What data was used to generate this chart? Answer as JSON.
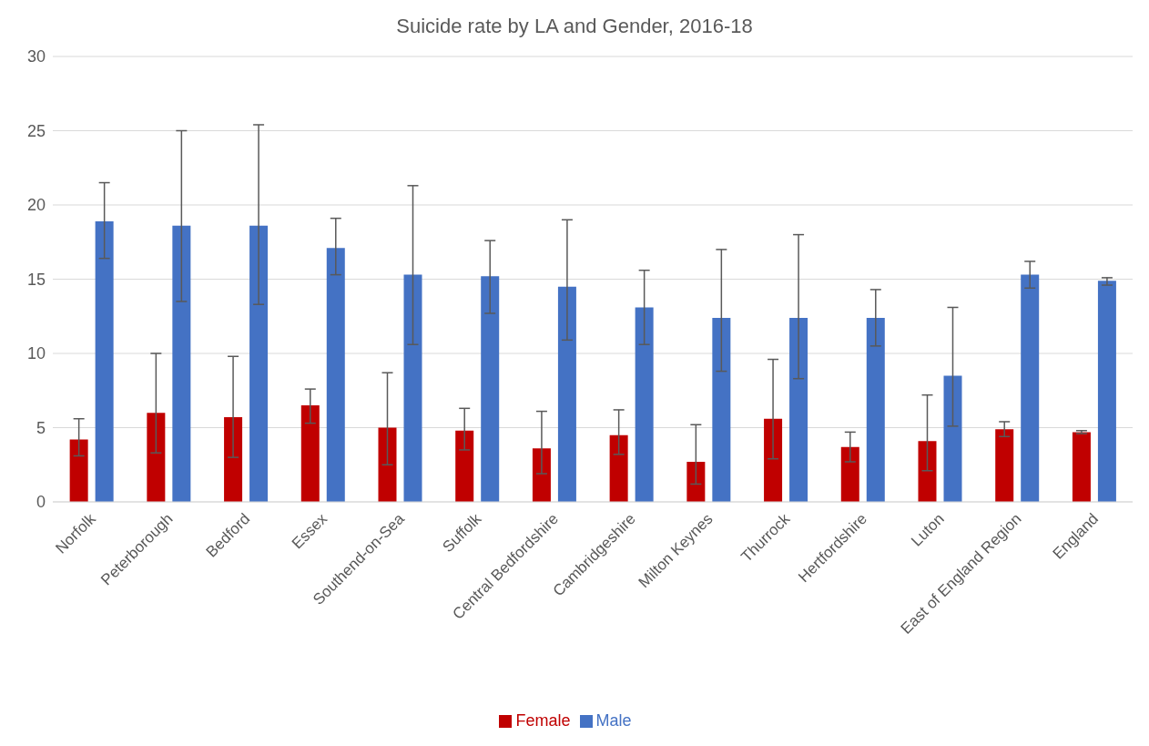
{
  "chart_data": {
    "type": "bar",
    "title": "Suicide rate by LA and Gender, 2016-18",
    "categories": [
      "Norfolk",
      "Peterborough",
      "Bedford",
      "Essex",
      "Southend-on-Sea",
      "Suffolk",
      "Central Bedfordshire",
      "Cambridgeshire",
      "Milton Keynes",
      "Thurrock",
      "Hertfordshire",
      "Luton",
      "East of England Region",
      "England"
    ],
    "series": [
      {
        "name": "Female",
        "color": "#c00000",
        "values": [
          4.2,
          6.0,
          5.7,
          6.5,
          5.0,
          4.8,
          3.6,
          4.5,
          2.7,
          5.6,
          3.7,
          4.1,
          4.9,
          4.7
        ],
        "errors": [
          [
            3.1,
            5.6
          ],
          [
            3.3,
            10.0
          ],
          [
            3.0,
            9.8
          ],
          [
            5.3,
            7.6
          ],
          [
            2.5,
            8.7
          ],
          [
            3.5,
            6.3
          ],
          [
            1.9,
            6.1
          ],
          [
            3.2,
            6.2
          ],
          [
            1.2,
            5.2
          ],
          [
            2.9,
            9.6
          ],
          [
            2.7,
            4.7
          ],
          [
            2.1,
            7.2
          ],
          [
            4.4,
            5.4
          ],
          [
            4.6,
            4.8
          ]
        ]
      },
      {
        "name": "Male",
        "color": "#4472c4",
        "values": [
          18.9,
          18.6,
          18.6,
          17.1,
          15.3,
          15.2,
          14.5,
          13.1,
          12.4,
          12.4,
          12.4,
          8.5,
          15.3,
          14.9
        ],
        "errors": [
          [
            16.4,
            21.5
          ],
          [
            13.5,
            25.0
          ],
          [
            13.3,
            25.4
          ],
          [
            15.3,
            19.1
          ],
          [
            10.6,
            21.3
          ],
          [
            12.7,
            17.6
          ],
          [
            10.9,
            19.0
          ],
          [
            10.6,
            15.6
          ],
          [
            8.8,
            17.0
          ],
          [
            8.3,
            18.0
          ],
          [
            10.5,
            14.3
          ],
          [
            5.1,
            13.1
          ],
          [
            14.4,
            16.2
          ],
          [
            14.6,
            15.1
          ]
        ]
      }
    ],
    "ylim": [
      0,
      30
    ],
    "yticks": [
      0,
      5,
      10,
      15,
      20,
      25,
      30
    ],
    "grid": "y",
    "legend": "bottom"
  }
}
